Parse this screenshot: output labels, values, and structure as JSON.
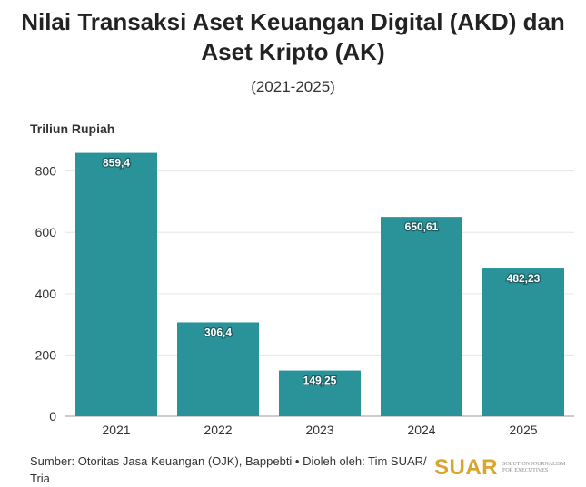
{
  "header": {
    "title": "Nilai Transaksi Aset Keuangan Digital (AKD) dan Aset Kripto (AK)",
    "subtitle": "(2021-2025)"
  },
  "footer": {
    "source": "Sumber: Otoritas Jasa Keuangan (OJK), Bappebti • Dioleh oleh: Tim SUAR/ Tria",
    "logo_word": "SUAR",
    "logo_tagline": "SOLUTION JOURNALISM FOR EXECUTIVES"
  },
  "chart_data": {
    "type": "bar",
    "title": "Nilai Transaksi Aset Keuangan Digital (AKD) dan Aset Kripto (AK)",
    "subtitle": "(2021-2025)",
    "ylabel": "Triliun Rupiah",
    "xlabel": "",
    "categories": [
      "2021",
      "2022",
      "2023",
      "2024",
      "2025"
    ],
    "values": [
      859.4,
      306.4,
      149.25,
      650.61,
      482.23
    ],
    "value_labels": [
      "859,4",
      "306,4",
      "149,25",
      "650,61",
      "482,23"
    ],
    "ylim": [
      0,
      870
    ],
    "yticks": [
      0,
      200,
      400,
      600,
      800
    ],
    "grid": true,
    "bar_color": "#2a939a"
  }
}
